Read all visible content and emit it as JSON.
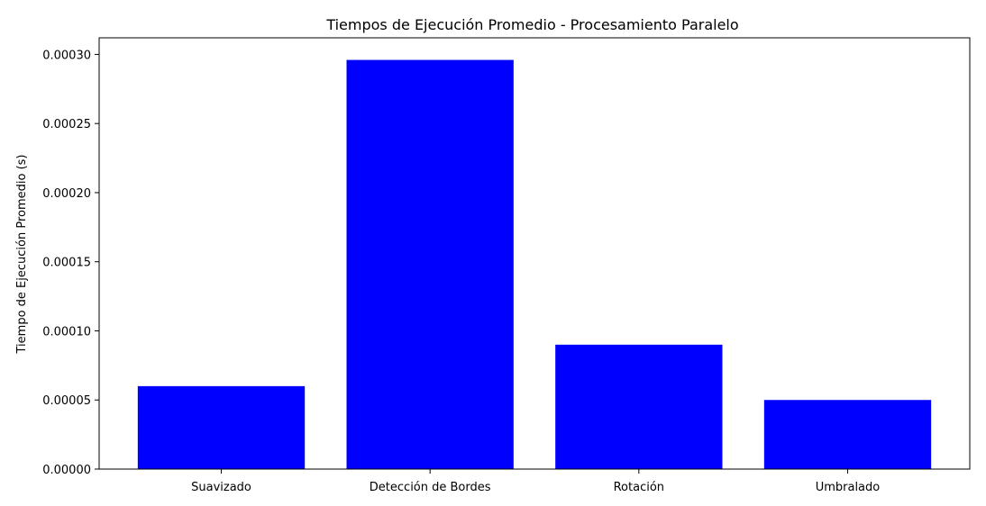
{
  "chart_data": {
    "type": "bar",
    "title": "Tiempos de Ejecución Promedio - Procesamiento Paralelo",
    "xlabel": "",
    "ylabel": "Tiempo de Ejecución Promedio (s)",
    "categories": [
      "Suavizado",
      "Detección de Bordes",
      "Rotación",
      "Umbralado"
    ],
    "values": [
      6e-05,
      0.000296,
      9e-05,
      5e-05
    ],
    "ylim": [
      0,
      0.000312
    ],
    "yticks": [
      0,
      5e-05,
      0.0001,
      0.00015,
      0.0002,
      0.00025,
      0.0003
    ],
    "ytick_labels": [
      "0.00000",
      "0.00005",
      "0.00010",
      "0.00015",
      "0.00020",
      "0.00025",
      "0.00030"
    ],
    "bar_color": "#0000ff",
    "grid": false,
    "legend": false
  }
}
